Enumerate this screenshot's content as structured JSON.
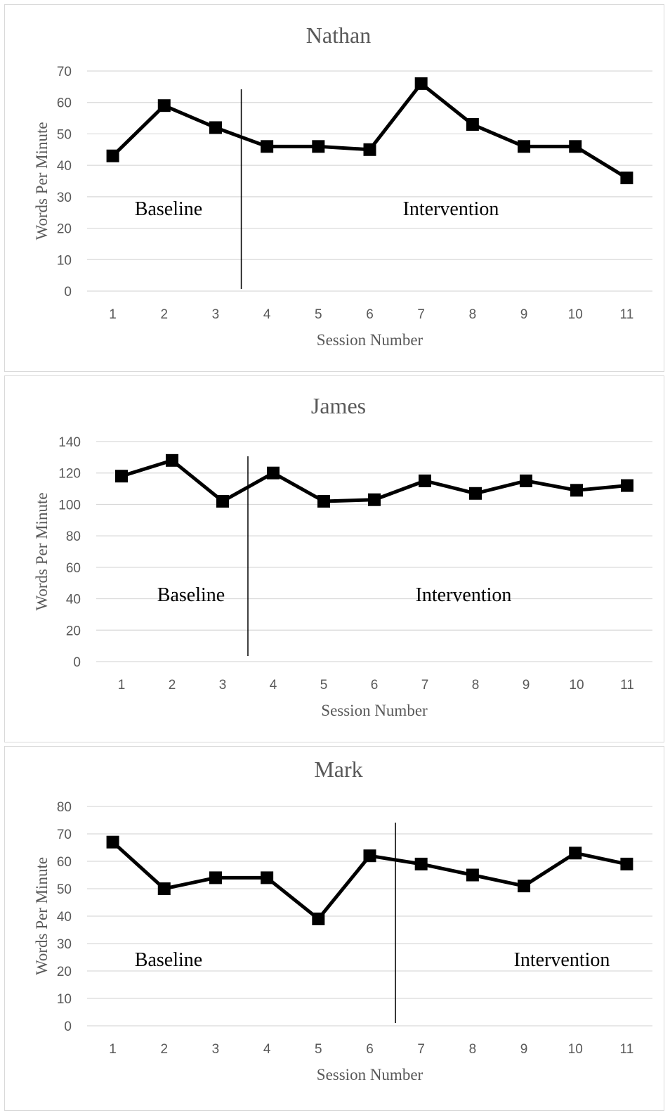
{
  "chart_data": [
    {
      "type": "line",
      "title": "Nathan",
      "xlabel": "Session Number",
      "ylabel": "Words Per Minute",
      "categories": [
        "1",
        "2",
        "3",
        "4",
        "5",
        "6",
        "7",
        "8",
        "9",
        "10",
        "11"
      ],
      "ylim": [
        0,
        70
      ],
      "yticks": [
        0,
        10,
        20,
        30,
        40,
        50,
        60,
        70
      ],
      "series": [
        {
          "values": [
            43,
            59,
            52,
            46,
            46,
            45,
            66,
            53,
            46,
            46,
            36
          ]
        }
      ],
      "phase_change_after": 3,
      "annotations": [
        "Baseline",
        "Intervention"
      ],
      "grid": true,
      "marker": "square"
    },
    {
      "type": "line",
      "title": "James",
      "xlabel": "Session Number",
      "ylabel": "Words Per Minute",
      "categories": [
        "1",
        "2",
        "3",
        "4",
        "5",
        "6",
        "7",
        "8",
        "9",
        "10",
        "11"
      ],
      "ylim": [
        0,
        140
      ],
      "yticks": [
        0,
        20,
        40,
        60,
        80,
        100,
        120,
        140
      ],
      "series": [
        {
          "values": [
            118,
            128,
            102,
            120,
            102,
            103,
            115,
            107,
            115,
            109,
            112
          ]
        }
      ],
      "phase_change_after": 3,
      "annotations": [
        "Baseline",
        "Intervention"
      ],
      "grid": true,
      "marker": "square"
    },
    {
      "type": "line",
      "title": "Mark",
      "xlabel": "Session Number",
      "ylabel": "Words Per Minute",
      "categories": [
        "1",
        "2",
        "3",
        "4",
        "5",
        "6",
        "7",
        "8",
        "9",
        "10",
        "11"
      ],
      "ylim": [
        0,
        80
      ],
      "yticks": [
        0,
        10,
        20,
        30,
        40,
        50,
        60,
        70,
        80
      ],
      "series": [
        {
          "values": [
            67,
            50,
            54,
            54,
            39,
            62,
            59,
            55,
            51,
            63,
            59
          ]
        }
      ],
      "phase_change_after": 6,
      "annotations": [
        "Baseline",
        "Intervention"
      ],
      "grid": true,
      "marker": "square"
    }
  ],
  "colors": {
    "line": "#000000",
    "grid": "#d9d9d9",
    "text": "#595959",
    "border": "#d9d9d9"
  }
}
